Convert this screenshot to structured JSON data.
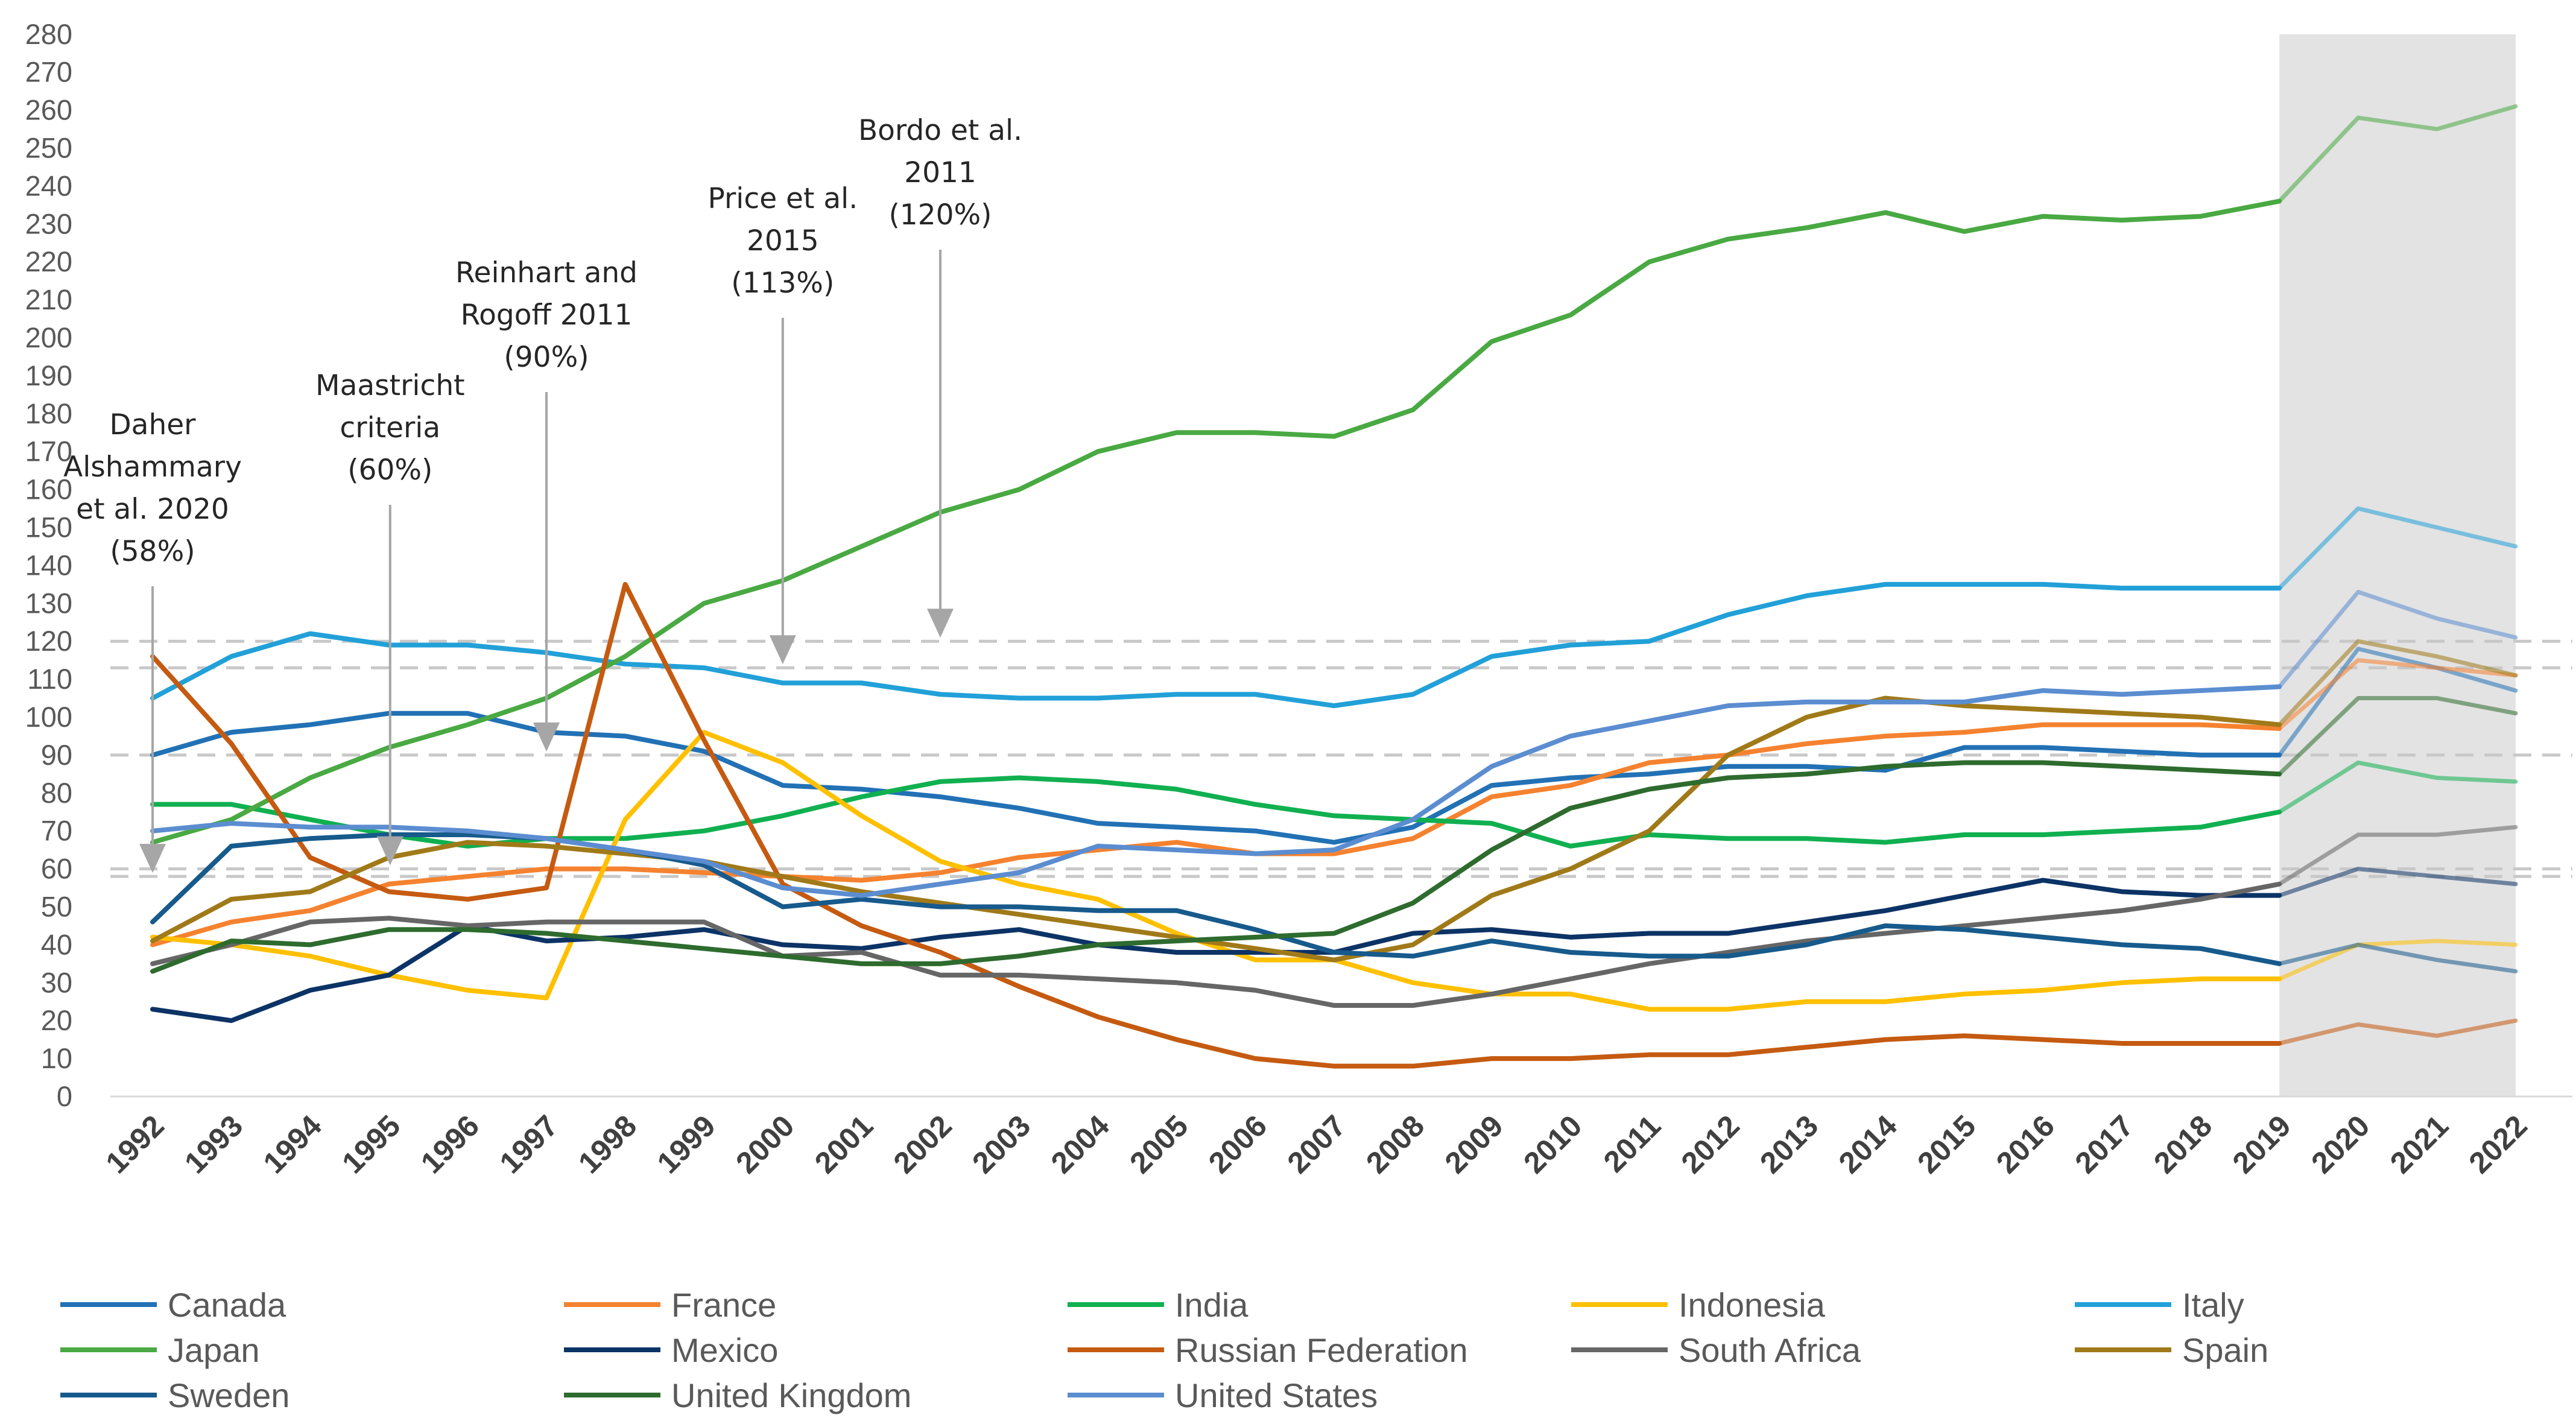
{
  "chart_data": {
    "type": "line",
    "title": "",
    "xlabel": "",
    "ylabel": "",
    "ylim": [
      0,
      280
    ],
    "yticks": [
      0,
      10,
      20,
      30,
      40,
      50,
      60,
      70,
      80,
      90,
      100,
      110,
      120,
      130,
      140,
      150,
      160,
      170,
      180,
      190,
      200,
      210,
      220,
      230,
      240,
      250,
      260,
      270,
      280
    ],
    "x": [
      "1992",
      "1993",
      "1994",
      "1995",
      "1996",
      "1997",
      "1998",
      "1999",
      "2000",
      "2001",
      "2002",
      "2003",
      "2004",
      "2005",
      "2006",
      "2007",
      "2008",
      "2009",
      "2010",
      "2011",
      "2012",
      "2013",
      "2014",
      "2015",
      "2016",
      "2017",
      "2018",
      "2019",
      "2020",
      "2021",
      "2022"
    ],
    "projection_shading": {
      "from": "2019",
      "to": "2022"
    },
    "thresholds": [
      58,
      60,
      90,
      113,
      120
    ],
    "annotations": [
      {
        "lines": [
          "Daher",
          "Alshammary",
          "et al. 2020",
          "(58%)"
        ],
        "x": "1992",
        "value": 58
      },
      {
        "lines": [
          "Maastricht",
          "criteria",
          "(60%)"
        ],
        "x": "1995",
        "value": 60
      },
      {
        "lines": [
          "Reinhart and",
          "Rogoff  2011",
          "(90%)"
        ],
        "x": "1997",
        "value": 90
      },
      {
        "lines": [
          "Price et al.",
          "2015",
          "(113%)"
        ],
        "x": "2000",
        "value": 113
      },
      {
        "lines": [
          "Bordo et al.",
          "2011",
          "(120%)"
        ],
        "x": "2002",
        "value": 120
      }
    ],
    "series": [
      {
        "name": "Canada",
        "color": "#2271B5",
        "values": [
          90,
          96,
          98,
          101,
          101,
          96,
          95,
          91,
          82,
          81,
          79,
          76,
          72,
          71,
          70,
          67,
          71,
          82,
          84,
          85,
          87,
          87,
          86,
          92,
          92,
          91,
          90,
          90,
          118,
          113,
          107
        ]
      },
      {
        "name": "France",
        "color": "#F5822F",
        "values": [
          40,
          46,
          49,
          56,
          58,
          60,
          60,
          59,
          58,
          57,
          59,
          63,
          65,
          67,
          64,
          64,
          68,
          79,
          82,
          88,
          90,
          93,
          95,
          96,
          98,
          98,
          98,
          97,
          115,
          113,
          111
        ]
      },
      {
        "name": "India",
        "color": "#10B050",
        "values": [
          77,
          77,
          73,
          69,
          66,
          68,
          68,
          70,
          74,
          79,
          83,
          84,
          83,
          81,
          77,
          74,
          73,
          72,
          66,
          69,
          68,
          68,
          67,
          69,
          69,
          70,
          71,
          75,
          88,
          84,
          83
        ]
      },
      {
        "name": "Indonesia",
        "color": "#FFC000",
        "values": [
          42,
          40,
          37,
          32,
          28,
          26,
          73,
          96,
          88,
          74,
          62,
          56,
          52,
          43,
          36,
          36,
          30,
          27,
          27,
          23,
          23,
          25,
          25,
          27,
          28,
          30,
          31,
          31,
          40,
          41,
          40
        ]
      },
      {
        "name": "Italy",
        "color": "#22A0D8",
        "values": [
          105,
          116,
          122,
          119,
          119,
          117,
          114,
          113,
          109,
          109,
          106,
          105,
          105,
          106,
          106,
          103,
          106,
          116,
          119,
          120,
          127,
          132,
          135,
          135,
          135,
          134,
          134,
          134,
          155,
          150,
          145
        ]
      },
      {
        "name": "Japan",
        "color": "#49A942",
        "values": [
          67,
          73,
          84,
          92,
          98,
          105,
          116,
          130,
          136,
          145,
          154,
          160,
          170,
          175,
          175,
          174,
          181,
          199,
          206,
          220,
          226,
          229,
          233,
          228,
          232,
          231,
          232,
          236,
          258,
          255,
          261
        ]
      },
      {
        "name": "Mexico",
        "color": "#0C3366",
        "values": [
          23,
          20,
          28,
          32,
          45,
          41,
          42,
          44,
          40,
          39,
          42,
          44,
          40,
          38,
          38,
          38,
          43,
          44,
          42,
          43,
          43,
          46,
          49,
          53,
          57,
          54,
          53,
          53,
          60,
          58,
          56
        ]
      },
      {
        "name": "Russian Federation",
        "color": "#C55A11",
        "values": [
          116,
          93,
          63,
          54,
          52,
          55,
          135,
          94,
          56,
          45,
          38,
          29,
          21,
          15,
          10,
          8,
          8,
          10,
          10,
          11,
          11,
          13,
          15,
          16,
          15,
          14,
          14,
          14,
          19,
          16,
          20
        ]
      },
      {
        "name": "South Africa",
        "color": "#666666",
        "values": [
          35,
          40,
          46,
          47,
          45,
          46,
          46,
          46,
          37,
          38,
          32,
          32,
          31,
          30,
          28,
          24,
          24,
          27,
          31,
          35,
          38,
          41,
          43,
          45,
          47,
          49,
          52,
          56,
          69,
          69,
          71
        ]
      },
      {
        "name": "Spain",
        "color": "#A07A19",
        "values": [
          41,
          52,
          54,
          63,
          67,
          66,
          64,
          62,
          58,
          54,
          51,
          48,
          45,
          42,
          39,
          36,
          40,
          53,
          60,
          70,
          90,
          100,
          105,
          103,
          102,
          101,
          100,
          98,
          120,
          116,
          111
        ]
      },
      {
        "name": "Sweden",
        "color": "#175A8C",
        "values": [
          46,
          66,
          68,
          69,
          69,
          68,
          65,
          61,
          50,
          52,
          50,
          50,
          49,
          49,
          44,
          38,
          37,
          41,
          38,
          37,
          37,
          40,
          45,
          44,
          42,
          40,
          39,
          35,
          40,
          36,
          33
        ]
      },
      {
        "name": "United Kingdom",
        "color": "#2E6B2E",
        "values": [
          33,
          41,
          40,
          44,
          44,
          43,
          41,
          39,
          37,
          35,
          35,
          37,
          40,
          41,
          42,
          43,
          51,
          65,
          76,
          81,
          84,
          85,
          87,
          88,
          88,
          87,
          86,
          85,
          105,
          105,
          101
        ]
      },
      {
        "name": "United States",
        "color": "#5B8DD0",
        "values": [
          70,
          72,
          71,
          71,
          70,
          68,
          65,
          62,
          55,
          53,
          56,
          59,
          66,
          65,
          64,
          65,
          73,
          87,
          95,
          99,
          103,
          104,
          104,
          104,
          107,
          106,
          107,
          108,
          133,
          126,
          121
        ]
      }
    ]
  }
}
